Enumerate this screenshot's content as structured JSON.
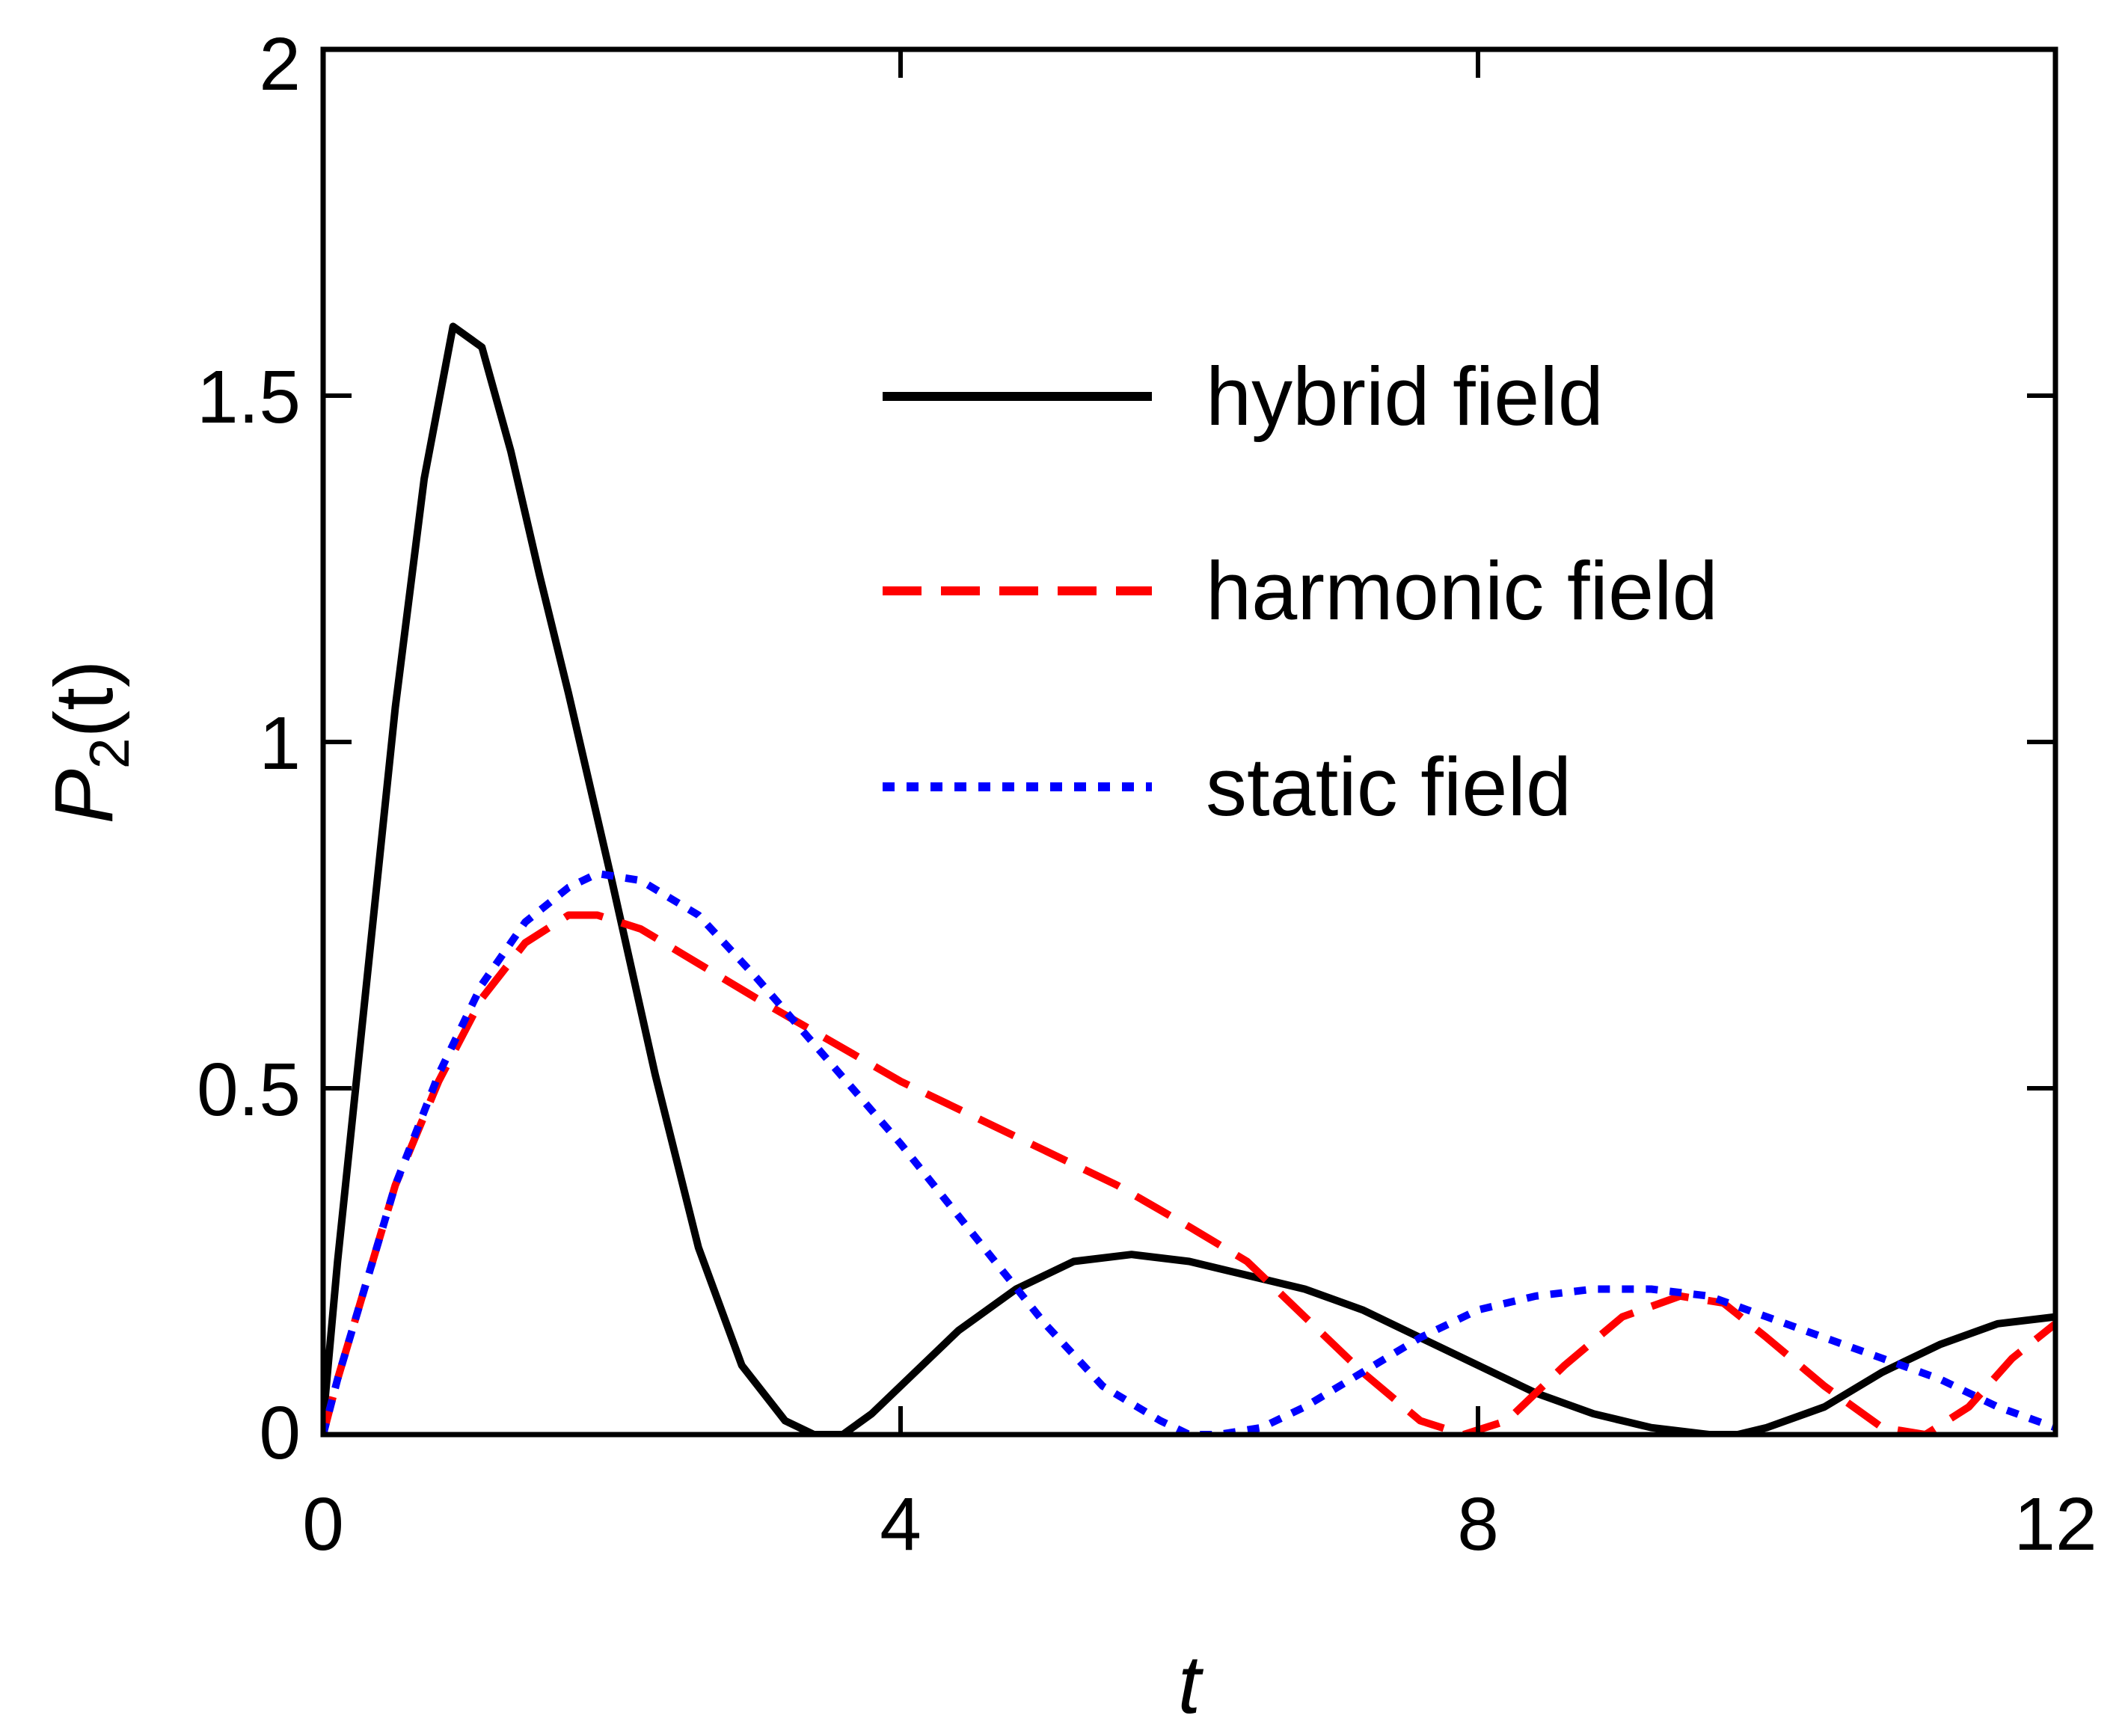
{
  "chart_data": {
    "type": "line",
    "title": "",
    "xlabel": "t",
    "ylabel": {
      "main": "P",
      "subscript": "2",
      "suffix": "(t)"
    },
    "xlim": [
      0,
      12
    ],
    "ylim": [
      0,
      2
    ],
    "x_ticks": [
      0,
      4,
      8,
      12
    ],
    "x_tick_labels": [
      "0",
      "4",
      "8",
      "12"
    ],
    "y_ticks": [
      0,
      0.5,
      1,
      1.5,
      2
    ],
    "y_tick_labels": [
      "0",
      "0.5",
      "1",
      "1.5",
      "2"
    ],
    "grid": false,
    "legend_position": "top-right",
    "series": [
      {
        "name": "hybrid field",
        "color": "#000000",
        "style": "solid",
        "x": [
          0,
          0.1,
          0.3,
          0.5,
          0.7,
          0.9,
          1.1,
          1.3,
          1.5,
          1.7,
          2.0,
          2.3,
          2.6,
          2.9,
          3.2,
          3.4,
          3.6,
          3.8,
          4.0,
          4.4,
          4.8,
          5.2,
          5.6,
          6.0,
          6.4,
          6.8,
          7.2,
          7.6,
          8.0,
          8.4,
          8.8,
          9.2,
          9.6,
          9.8,
          10.0,
          10.4,
          10.8,
          11.2,
          11.6,
          12.0
        ],
        "y": [
          0.02,
          0.25,
          0.65,
          1.05,
          1.38,
          1.6,
          1.57,
          1.42,
          1.24,
          1.07,
          0.8,
          0.52,
          0.27,
          0.1,
          0.02,
          0.0,
          0.0,
          0.03,
          0.07,
          0.15,
          0.21,
          0.25,
          0.26,
          0.25,
          0.23,
          0.21,
          0.18,
          0.14,
          0.1,
          0.06,
          0.03,
          0.01,
          0.0,
          0.0,
          0.01,
          0.04,
          0.09,
          0.13,
          0.16,
          0.17
        ]
      },
      {
        "name": "harmonic field",
        "color": "#ff0000",
        "style": "dashed",
        "x": [
          0,
          0.1,
          0.3,
          0.5,
          0.8,
          1.1,
          1.4,
          1.7,
          1.9,
          2.2,
          2.6,
          3.0,
          3.5,
          4.0,
          4.5,
          5.0,
          5.5,
          6.0,
          6.4,
          6.8,
          7.2,
          7.6,
          7.9,
          8.2,
          8.6,
          9.0,
          9.4,
          9.7,
          10.0,
          10.4,
          10.8,
          11.1,
          11.4,
          11.7,
          12.0
        ],
        "y": [
          0.0,
          0.08,
          0.22,
          0.36,
          0.51,
          0.63,
          0.71,
          0.75,
          0.75,
          0.73,
          0.68,
          0.63,
          0.57,
          0.51,
          0.46,
          0.41,
          0.36,
          0.3,
          0.25,
          0.17,
          0.09,
          0.02,
          0.0,
          0.02,
          0.1,
          0.17,
          0.2,
          0.19,
          0.14,
          0.07,
          0.01,
          0.0,
          0.04,
          0.11,
          0.16
        ]
      },
      {
        "name": "static field",
        "color": "#0000ff",
        "style": "dotted",
        "x": [
          0,
          0.1,
          0.3,
          0.5,
          0.8,
          1.1,
          1.4,
          1.7,
          1.9,
          2.2,
          2.6,
          3.0,
          3.5,
          4.0,
          4.5,
          5.0,
          5.4,
          5.8,
          6.0,
          6.2,
          6.5,
          6.8,
          7.2,
          7.6,
          8.0,
          8.4,
          8.8,
          9.2,
          9.6,
          10.0,
          10.4,
          10.8,
          11.2,
          11.6,
          12.0
        ],
        "y": [
          0.0,
          0.08,
          0.22,
          0.36,
          0.52,
          0.65,
          0.74,
          0.79,
          0.81,
          0.8,
          0.75,
          0.66,
          0.54,
          0.42,
          0.29,
          0.16,
          0.07,
          0.02,
          0.0,
          0.0,
          0.01,
          0.04,
          0.09,
          0.14,
          0.18,
          0.2,
          0.21,
          0.21,
          0.2,
          0.17,
          0.14,
          0.11,
          0.08,
          0.04,
          0.01
        ]
      }
    ]
  }
}
